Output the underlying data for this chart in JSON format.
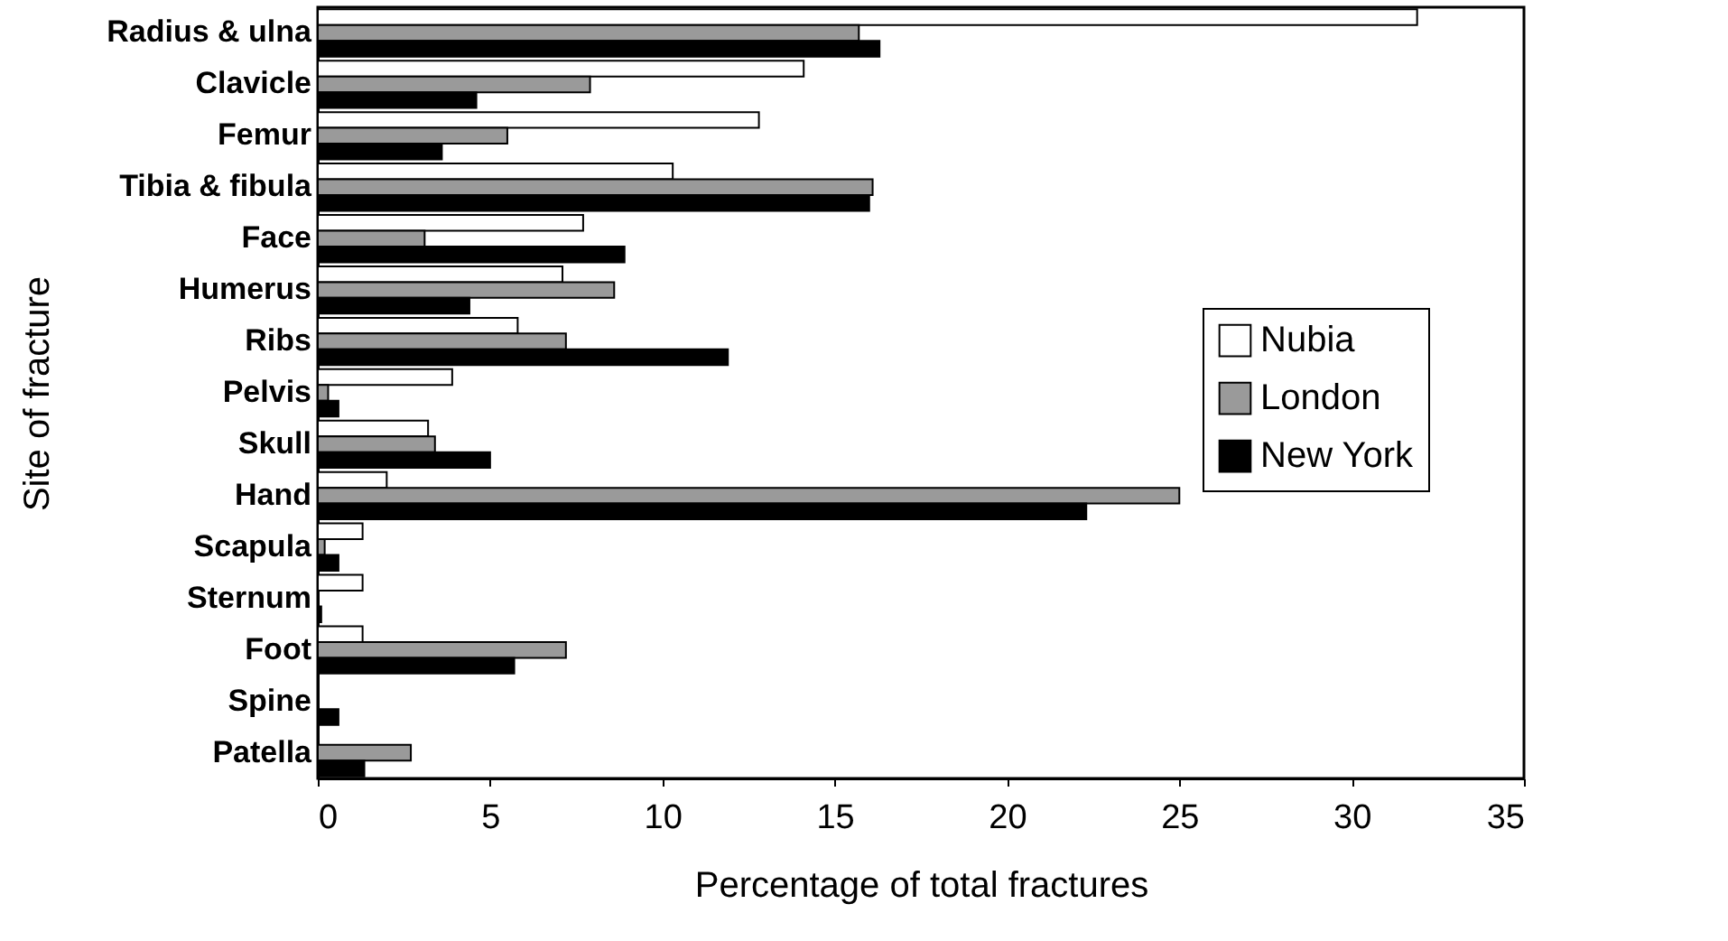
{
  "chart_data": {
    "type": "bar",
    "orientation": "horizontal",
    "xlabel": "Percentage of total fractures",
    "ylabel": "Site of fracture",
    "categories": [
      "Radius & ulna",
      "Clavicle",
      "Femur",
      "Tibia & fibula",
      "Face",
      "Humerus",
      "Ribs",
      "Pelvis",
      "Skull",
      "Hand",
      "Scapula",
      "Sternum",
      "Foot",
      "Spine",
      "Patella"
    ],
    "series": [
      {
        "name": "Nubia",
        "color": "#ffffff",
        "values": [
          31.9,
          14.1,
          12.8,
          10.3,
          7.7,
          7.1,
          5.8,
          3.9,
          3.2,
          2.0,
          1.3,
          1.3,
          1.3,
          null,
          null
        ]
      },
      {
        "name": "London",
        "color": "#9a9a9a",
        "values": [
          15.7,
          7.9,
          5.5,
          16.1,
          3.1,
          8.6,
          7.2,
          0.3,
          3.4,
          25.0,
          0.2,
          null,
          7.2,
          null,
          2.7
        ]
      },
      {
        "name": "New York",
        "color": "#000000",
        "values": [
          16.3,
          4.6,
          3.6,
          16.0,
          8.9,
          4.4,
          11.9,
          0.6,
          5.0,
          22.3,
          0.6,
          0.1,
          5.7,
          0.6,
          1.35
        ]
      }
    ],
    "xlim": [
      0,
      35
    ],
    "xticks": [
      0,
      5,
      10,
      15,
      20,
      25,
      30,
      35
    ],
    "legend": "right",
    "grid": false
  }
}
